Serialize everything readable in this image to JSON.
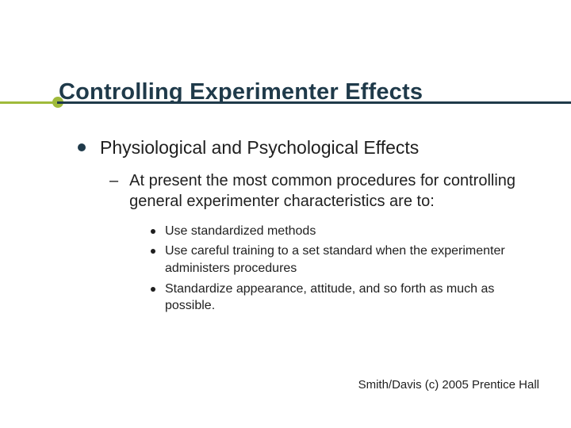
{
  "colors": {
    "title": "#1f3a4a",
    "accent": "#9fba3a",
    "text": "#1f1f1f",
    "background": "#ffffff"
  },
  "typography": {
    "family": "Arial",
    "title_size_pt": 29,
    "lvl1_size_pt": 23,
    "lvl2_size_pt": 20,
    "lvl3_size_pt": 16,
    "footer_size_pt": 15
  },
  "title": "Controlling Experimenter Effects",
  "body": {
    "lvl1": "Physiological and Psychological Effects",
    "lvl2": "At present the most common procedures for controlling general experimenter characteristics are to:",
    "lvl3": [
      "Use standardized methods",
      "Use careful training to a set standard when the experimenter administers procedures",
      "Standardize appearance, attitude, and so forth as much as possible."
    ]
  },
  "footer": "Smith/Davis (c) 2005 Prentice Hall"
}
